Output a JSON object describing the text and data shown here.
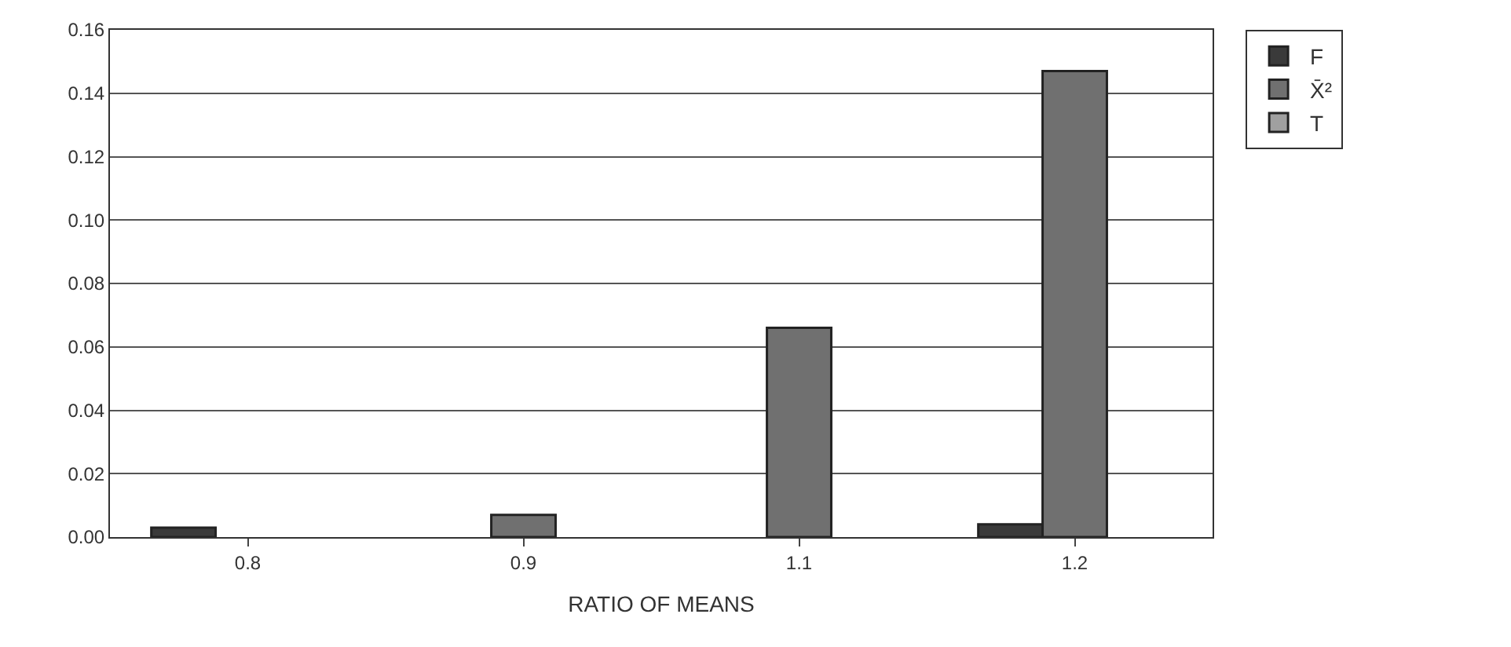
{
  "chart_data": {
    "type": "bar",
    "xlabel": "RATIO OF MEANS",
    "categories": [
      "0.8",
      "0.9",
      "1.1",
      "1.2"
    ],
    "series": [
      {
        "name": "F",
        "color": "#3a3a3a",
        "values": [
          0.003,
          null,
          null,
          0.004
        ]
      },
      {
        "name": "X̄²",
        "color": "#707070",
        "values": [
          null,
          0.007,
          0.066,
          0.147
        ]
      },
      {
        "name": "T",
        "color": "#a0a0a0",
        "values": [
          null,
          null,
          null,
          null
        ]
      }
    ],
    "ylim": [
      0,
      0.16
    ],
    "yticks": [
      {
        "value": 0,
        "label": "0.00"
      },
      {
        "value": 0.02,
        "label": "0.02"
      },
      {
        "value": 0.04,
        "label": "0.04"
      },
      {
        "value": 0.06,
        "label": "0.06"
      },
      {
        "value": 0.08,
        "label": "0.08"
      },
      {
        "value": 0.1,
        "label": "0.10"
      },
      {
        "value": 0.12,
        "label": "0.12"
      },
      {
        "value": 0.14,
        "label": "0.14"
      },
      {
        "value": 0.16,
        "label": "0.16"
      }
    ],
    "grid": "y",
    "legend": "top right"
  }
}
